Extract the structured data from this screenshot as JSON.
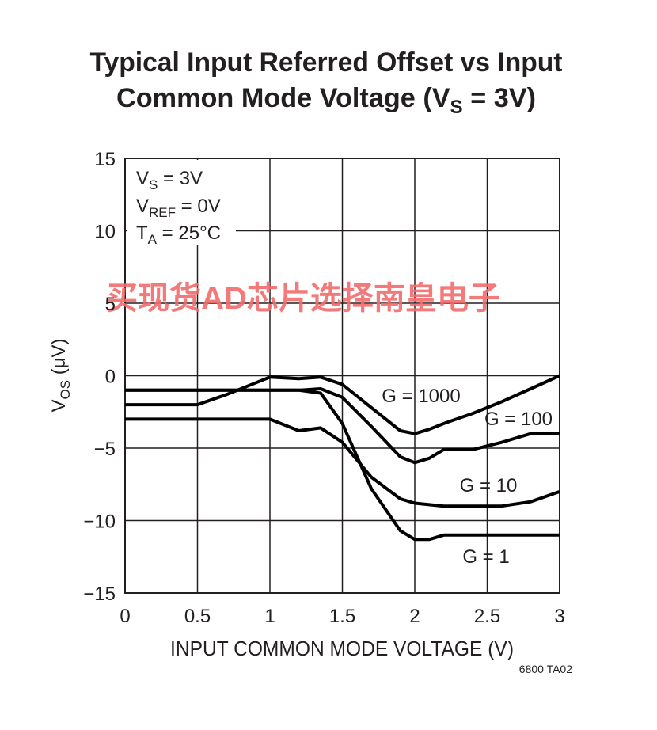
{
  "chart_data": {
    "type": "line",
    "title": [
      [
        "Typical Input Referred Offset vs Input"
      ],
      [
        "Common Mode Voltage (V",
        "S",
        " = 3V)"
      ]
    ],
    "x_label": "INPUT COMMON MODE VOLTAGE (V)",
    "y_label": [
      "V",
      "OS",
      " (μV)"
    ],
    "annotations": [
      [
        "V",
        "S",
        " = 3V"
      ],
      [
        "V",
        "REF",
        " = 0V"
      ],
      [
        "T",
        "A",
        " = 25°C"
      ]
    ],
    "footnote": "6800 TA02",
    "watermark": "买现货AD芯片选择南皇电子",
    "x": [
      0,
      0.5,
      0.7,
      1.0,
      1.2,
      1.35,
      1.5,
      1.7,
      1.9,
      2.0,
      2.1,
      2.2,
      2.4,
      2.6,
      2.8,
      3.0
    ],
    "series": [
      {
        "name": "G = 1000",
        "color": "#000000",
        "values": [
          -2,
          -2,
          -1.3,
          -0.1,
          -0.2,
          -0.1,
          -0.6,
          -2.2,
          -3.8,
          -4,
          -3.7,
          -3.3,
          -2.6,
          -1.8,
          -0.9,
          0
        ]
      },
      {
        "name": "G = 100",
        "color": "#000000",
        "values": [
          -1,
          -1,
          -1,
          -1,
          -1,
          -0.9,
          -1.5,
          -3.5,
          -5.6,
          -6,
          -5.7,
          -5.1,
          -5.1,
          -4.6,
          -4,
          -4
        ]
      },
      {
        "name": "G = 10",
        "color": "#000000",
        "values": [
          -3,
          -3,
          -3,
          -3,
          -3.8,
          -3.6,
          -4.6,
          -7,
          -8.5,
          -8.8,
          -8.9,
          -9,
          -9,
          -9,
          -8.7,
          -8
        ]
      },
      {
        "name": "G = 1",
        "color": "#000000",
        "values": [
          -1,
          -1,
          -1,
          -1,
          -1,
          -1.2,
          -3.3,
          -7.8,
          -10.7,
          -11.3,
          -11.3,
          -11,
          -11,
          -11,
          -11,
          -11
        ]
      }
    ],
    "xlim": [
      0,
      3
    ],
    "xticks": [
      0,
      0.5,
      1,
      1.5,
      2,
      2.5,
      3
    ],
    "ylim": [
      -15,
      15
    ],
    "yticks": [
      15,
      10,
      5,
      0,
      {
        "value": -5,
        "label": "−5"
      },
      {
        "value": -10,
        "label": "−10"
      },
      {
        "value": -15,
        "label": "−15"
      }
    ],
    "grid": true
  }
}
